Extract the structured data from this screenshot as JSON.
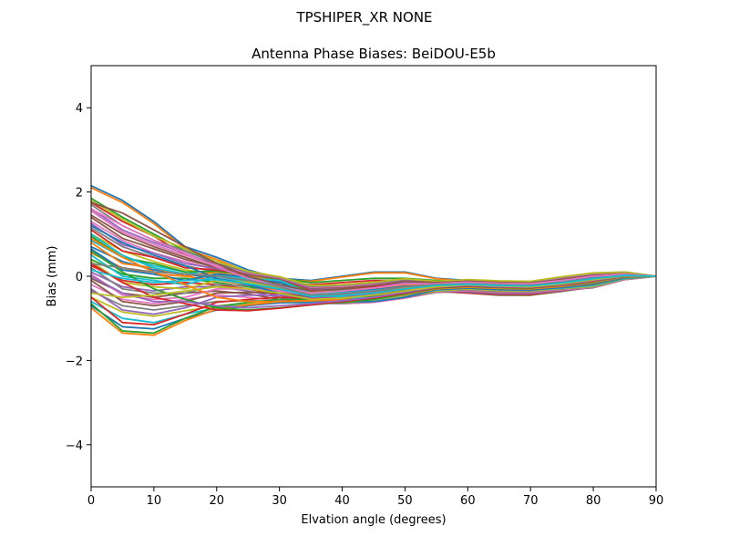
{
  "figure": {
    "suptitle": "TPSHIPER_XR     NONE"
  },
  "chart_data": {
    "type": "line",
    "title": "Antenna Phase Biases: BeiDOU-E5b",
    "xlabel": "Elvation angle (degrees)",
    "ylabel": "Bias (mm)",
    "xlim": [
      0,
      90
    ],
    "ylim": [
      -5,
      5
    ],
    "xticks": [
      0,
      10,
      20,
      30,
      40,
      50,
      60,
      70,
      80,
      90
    ],
    "yticks": [
      -4,
      -2,
      0,
      2,
      4
    ],
    "ytick_labels": [
      "−4",
      "−2",
      "0",
      "2",
      "4"
    ],
    "grid": false,
    "legend": "none",
    "palette": [
      "#1f77b4",
      "#ff7f0e",
      "#2ca02c",
      "#d62728",
      "#9467bd",
      "#8c564b",
      "#e377c2",
      "#7f7f7f",
      "#bcbd22",
      "#17becf"
    ],
    "x": [
      0,
      5,
      10,
      15,
      20,
      25,
      30,
      35,
      40,
      45,
      50,
      55,
      60,
      65,
      70,
      75,
      80,
      85,
      90
    ],
    "series": [
      {
        "values": [
          2.15,
          1.8,
          1.3,
          0.7,
          0.45,
          0.15,
          -0.05,
          -0.1,
          0.0,
          0.1,
          0.1,
          -0.05,
          -0.1,
          -0.15,
          -0.15,
          -0.1,
          0.05,
          0.1,
          0.0
        ]
      },
      {
        "values": [
          2.1,
          1.75,
          1.25,
          0.65,
          0.4,
          0.1,
          -0.08,
          -0.12,
          -0.02,
          0.08,
          0.08,
          -0.06,
          -0.12,
          -0.16,
          -0.16,
          -0.12,
          0.03,
          0.09,
          0.0
        ]
      },
      {
        "values": [
          1.85,
          1.4,
          1.0,
          0.6,
          0.35,
          0.1,
          -0.05,
          -0.15,
          -0.1,
          -0.05,
          -0.05,
          -0.1,
          -0.15,
          -0.2,
          -0.2,
          -0.15,
          0.0,
          0.05,
          0.0
        ]
      },
      {
        "values": [
          1.75,
          1.3,
          0.95,
          0.5,
          0.3,
          0.05,
          -0.1,
          -0.2,
          -0.15,
          -0.1,
          -0.1,
          -0.15,
          -0.18,
          -0.25,
          -0.25,
          -0.18,
          -0.02,
          0.04,
          0.0
        ]
      },
      {
        "values": [
          1.6,
          1.1,
          0.8,
          0.55,
          0.25,
          0.0,
          -0.12,
          -0.25,
          -0.2,
          -0.15,
          -0.12,
          -0.18,
          -0.2,
          -0.28,
          -0.3,
          -0.2,
          -0.05,
          0.03,
          0.0
        ]
      },
      {
        "values": [
          1.45,
          1.0,
          0.7,
          0.45,
          0.2,
          -0.02,
          -0.15,
          -0.3,
          -0.25,
          -0.2,
          -0.18,
          -0.2,
          -0.22,
          -0.3,
          -0.32,
          -0.22,
          -0.08,
          0.02,
          0.0
        ]
      },
      {
        "values": [
          1.3,
          0.85,
          0.55,
          0.35,
          0.15,
          -0.05,
          -0.2,
          -0.35,
          -0.3,
          -0.25,
          -0.22,
          -0.22,
          -0.25,
          -0.32,
          -0.35,
          -0.25,
          -0.1,
          0.01,
          0.0
        ]
      },
      {
        "values": [
          1.15,
          0.7,
          0.45,
          0.25,
          0.1,
          -0.1,
          -0.25,
          -0.4,
          -0.35,
          -0.3,
          -0.28,
          -0.25,
          -0.28,
          -0.35,
          -0.38,
          -0.28,
          -0.12,
          0.0,
          0.0
        ]
      },
      {
        "values": [
          1.0,
          0.6,
          0.35,
          0.15,
          0.05,
          -0.12,
          -0.28,
          -0.45,
          -0.4,
          -0.35,
          -0.3,
          -0.28,
          -0.3,
          -0.38,
          -0.4,
          -0.3,
          -0.15,
          -0.02,
          0.0
        ]
      },
      {
        "values": [
          0.85,
          0.45,
          0.25,
          0.1,
          0.0,
          -0.15,
          -0.3,
          -0.5,
          -0.45,
          -0.4,
          -0.35,
          -0.3,
          -0.32,
          -0.4,
          -0.42,
          -0.32,
          -0.18,
          -0.03,
          0.0
        ]
      },
      {
        "values": [
          0.7,
          0.35,
          0.15,
          0.05,
          -0.05,
          -0.18,
          -0.32,
          -0.52,
          -0.5,
          -0.45,
          -0.4,
          -0.32,
          -0.35,
          -0.42,
          -0.44,
          -0.34,
          -0.2,
          -0.04,
          0.0
        ]
      },
      {
        "values": [
          0.55,
          0.2,
          0.05,
          0.0,
          -0.1,
          -0.2,
          -0.35,
          -0.55,
          -0.55,
          -0.5,
          -0.42,
          -0.34,
          -0.38,
          -0.44,
          -0.45,
          -0.35,
          -0.22,
          -0.05,
          0.0
        ]
      },
      {
        "values": [
          0.4,
          0.05,
          -0.05,
          -0.05,
          -0.15,
          -0.25,
          -0.4,
          -0.58,
          -0.6,
          -0.55,
          -0.45,
          -0.35,
          -0.4,
          -0.45,
          -0.45,
          -0.36,
          -0.25,
          -0.06,
          0.0
        ]
      },
      {
        "values": [
          0.25,
          -0.1,
          -0.2,
          -0.15,
          -0.2,
          -0.3,
          -0.45,
          -0.6,
          -0.62,
          -0.58,
          -0.48,
          -0.36,
          -0.4,
          -0.44,
          -0.44,
          -0.35,
          -0.26,
          -0.07,
          0.0
        ]
      },
      {
        "values": [
          0.1,
          -0.25,
          -0.35,
          -0.25,
          -0.25,
          -0.35,
          -0.5,
          -0.62,
          -0.64,
          -0.6,
          -0.5,
          -0.37,
          -0.38,
          -0.42,
          -0.42,
          -0.34,
          -0.27,
          -0.08,
          0.0
        ]
      },
      {
        "values": [
          -0.05,
          -0.4,
          -0.5,
          -0.4,
          -0.35,
          -0.42,
          -0.55,
          -0.63,
          -0.65,
          -0.62,
          -0.52,
          -0.38,
          -0.36,
          -0.4,
          -0.4,
          -0.33,
          -0.27,
          -0.08,
          0.0
        ]
      },
      {
        "values": [
          -0.2,
          -0.55,
          -0.65,
          -0.55,
          -0.45,
          -0.5,
          -0.58,
          -0.64,
          -0.65,
          -0.62,
          -0.52,
          -0.37,
          -0.34,
          -0.38,
          -0.38,
          -0.32,
          -0.26,
          -0.08,
          0.0
        ]
      },
      {
        "values": [
          -0.35,
          -0.7,
          -0.8,
          -0.7,
          -0.6,
          -0.58,
          -0.6,
          -0.64,
          -0.64,
          -0.6,
          -0.5,
          -0.36,
          -0.32,
          -0.36,
          -0.36,
          -0.3,
          -0.25,
          -0.07,
          0.0
        ]
      },
      {
        "values": [
          -0.5,
          -0.85,
          -0.95,
          -0.82,
          -0.7,
          -0.65,
          -0.62,
          -0.63,
          -0.62,
          -0.58,
          -0.48,
          -0.35,
          -0.3,
          -0.34,
          -0.34,
          -0.29,
          -0.24,
          -0.06,
          0.0
        ]
      },
      {
        "values": [
          -0.6,
          -1.0,
          -1.1,
          -0.9,
          -0.75,
          -0.68,
          -0.63,
          -0.62,
          -0.6,
          -0.55,
          -0.45,
          -0.33,
          -0.28,
          -0.32,
          -0.32,
          -0.28,
          -0.22,
          -0.05,
          0.0
        ]
      },
      {
        "values": [
          -0.7,
          -1.2,
          -1.25,
          -1.0,
          -0.8,
          -0.7,
          -0.63,
          -0.6,
          -0.58,
          -0.52,
          -0.42,
          -0.31,
          -0.26,
          -0.3,
          -0.3,
          -0.27,
          -0.2,
          -0.04,
          0.0
        ]
      },
      {
        "values": [
          -0.75,
          -1.35,
          -1.4,
          -1.05,
          -0.78,
          -0.68,
          -0.6,
          -0.58,
          -0.55,
          -0.5,
          -0.4,
          -0.3,
          -0.25,
          -0.28,
          -0.29,
          -0.26,
          -0.18,
          -0.03,
          0.0
        ]
      },
      {
        "values": [
          -0.65,
          -1.3,
          -1.35,
          -1.0,
          -0.72,
          -0.62,
          -0.55,
          -0.55,
          -0.52,
          -0.48,
          -0.38,
          -0.28,
          -0.24,
          -0.27,
          -0.28,
          -0.25,
          -0.17,
          -0.02,
          0.0
        ]
      },
      {
        "values": [
          -0.5,
          -1.1,
          -1.15,
          -0.9,
          -0.62,
          -0.55,
          -0.5,
          -0.52,
          -0.5,
          -0.45,
          -0.36,
          -0.27,
          -0.23,
          -0.26,
          -0.27,
          -0.24,
          -0.15,
          -0.01,
          0.0
        ]
      },
      {
        "values": [
          -0.3,
          -0.8,
          -0.9,
          -0.75,
          -0.5,
          -0.45,
          -0.45,
          -0.5,
          -0.48,
          -0.42,
          -0.34,
          -0.26,
          -0.22,
          -0.25,
          -0.26,
          -0.22,
          -0.13,
          0.0,
          0.0
        ]
      },
      {
        "values": [
          -0.1,
          -0.6,
          -0.7,
          -0.6,
          -0.4,
          -0.38,
          -0.4,
          -0.48,
          -0.46,
          -0.4,
          -0.32,
          -0.25,
          -0.21,
          -0.24,
          -0.25,
          -0.2,
          -0.11,
          0.01,
          0.0
        ]
      },
      {
        "values": [
          0.05,
          -0.45,
          -0.55,
          -0.5,
          -0.3,
          -0.3,
          -0.35,
          -0.46,
          -0.44,
          -0.38,
          -0.3,
          -0.24,
          -0.2,
          -0.23,
          -0.24,
          -0.18,
          -0.09,
          0.02,
          0.0
        ]
      },
      {
        "values": [
          0.2,
          -0.3,
          -0.4,
          -0.4,
          -0.2,
          -0.22,
          -0.3,
          -0.44,
          -0.42,
          -0.36,
          -0.28,
          -0.23,
          -0.19,
          -0.22,
          -0.23,
          -0.16,
          -0.07,
          0.03,
          0.0
        ]
      },
      {
        "values": [
          0.35,
          -0.15,
          -0.25,
          -0.3,
          -0.1,
          -0.15,
          -0.25,
          -0.42,
          -0.4,
          -0.34,
          -0.26,
          -0.22,
          -0.18,
          -0.21,
          -0.22,
          -0.14,
          -0.05,
          0.04,
          0.0
        ]
      },
      {
        "values": [
          0.5,
          0.0,
          -0.1,
          -0.2,
          0.0,
          -0.08,
          -0.2,
          -0.4,
          -0.38,
          -0.32,
          -0.24,
          -0.21,
          -0.17,
          -0.2,
          -0.21,
          -0.12,
          -0.03,
          0.05,
          0.0
        ]
      },
      {
        "values": [
          0.65,
          0.15,
          0.05,
          -0.1,
          0.05,
          -0.02,
          -0.15,
          -0.38,
          -0.36,
          -0.3,
          -0.22,
          -0.2,
          -0.16,
          -0.19,
          -0.2,
          -0.1,
          -0.01,
          0.06,
          0.0
        ]
      },
      {
        "values": [
          0.8,
          0.3,
          0.2,
          0.0,
          0.1,
          0.02,
          -0.1,
          -0.36,
          -0.34,
          -0.28,
          -0.2,
          -0.19,
          -0.15,
          -0.18,
          -0.19,
          -0.08,
          0.01,
          0.07,
          0.0
        ]
      },
      {
        "values": [
          0.95,
          0.45,
          0.3,
          0.1,
          0.12,
          0.04,
          -0.08,
          -0.34,
          -0.32,
          -0.26,
          -0.18,
          -0.18,
          -0.14,
          -0.17,
          -0.18,
          -0.07,
          0.02,
          0.07,
          0.0
        ]
      },
      {
        "values": [
          1.1,
          0.6,
          0.45,
          0.2,
          0.15,
          0.05,
          -0.06,
          -0.32,
          -0.3,
          -0.24,
          -0.16,
          -0.17,
          -0.13,
          -0.16,
          -0.17,
          -0.06,
          0.03,
          0.08,
          0.0
        ]
      },
      {
        "values": [
          1.25,
          0.75,
          0.55,
          0.3,
          0.18,
          0.06,
          -0.05,
          -0.3,
          -0.28,
          -0.22,
          -0.14,
          -0.16,
          -0.12,
          -0.15,
          -0.16,
          -0.05,
          0.04,
          0.08,
          0.0
        ]
      },
      {
        "values": [
          1.4,
          0.9,
          0.65,
          0.4,
          0.2,
          0.07,
          -0.04,
          -0.28,
          -0.26,
          -0.2,
          -0.12,
          -0.15,
          -0.11,
          -0.14,
          -0.15,
          -0.04,
          0.05,
          0.09,
          0.0
        ]
      },
      {
        "values": [
          1.55,
          1.05,
          0.75,
          0.5,
          0.25,
          0.08,
          -0.03,
          -0.26,
          -0.24,
          -0.18,
          -0.1,
          -0.14,
          -0.1,
          -0.13,
          -0.14,
          -0.03,
          0.06,
          0.09,
          0.0
        ]
      },
      {
        "values": [
          1.7,
          1.2,
          0.85,
          0.6,
          0.3,
          0.1,
          -0.02,
          -0.24,
          -0.22,
          -0.16,
          -0.08,
          -0.13,
          -0.09,
          -0.12,
          -0.13,
          -0.02,
          0.07,
          0.1,
          0.0
        ]
      },
      {
        "values": [
          1.8,
          1.35,
          0.95,
          0.65,
          0.35,
          0.12,
          -0.01,
          -0.22,
          -0.2,
          -0.14,
          -0.06,
          -0.12,
          -0.08,
          -0.11,
          -0.12,
          -0.01,
          0.08,
          0.1,
          0.0
        ]
      },
      {
        "values": [
          1.0,
          0.5,
          0.2,
          0.05,
          0.0,
          -0.05,
          -0.1,
          -0.4,
          -0.5,
          -0.52,
          -0.45,
          -0.3,
          -0.25,
          -0.3,
          -0.3,
          -0.25,
          -0.15,
          -0.02,
          0.0
        ]
      },
      {
        "values": [
          1.2,
          0.8,
          0.5,
          0.25,
          -0.05,
          -0.2,
          -0.4,
          -0.55,
          -0.6,
          -0.6,
          -0.5,
          -0.32,
          -0.28,
          -0.32,
          -0.33,
          -0.26,
          -0.16,
          -0.03,
          0.0
        ]
      },
      {
        "values": [
          0.9,
          0.45,
          0.1,
          -0.2,
          -0.5,
          -0.6,
          -0.6,
          -0.58,
          -0.56,
          -0.54,
          -0.44,
          -0.3,
          -0.26,
          -0.29,
          -0.3,
          -0.24,
          -0.14,
          -0.02,
          0.0
        ]
      },
      {
        "values": [
          0.6,
          0.1,
          -0.3,
          -0.55,
          -0.75,
          -0.8,
          -0.75,
          -0.68,
          -0.62,
          -0.55,
          -0.42,
          -0.28,
          -0.24,
          -0.27,
          -0.28,
          -0.22,
          -0.12,
          -0.01,
          0.0
        ]
      },
      {
        "values": [
          0.3,
          -0.15,
          -0.5,
          -0.65,
          -0.8,
          -0.82,
          -0.76,
          -0.68,
          -0.6,
          -0.52,
          -0.4,
          -0.27,
          -0.23,
          -0.26,
          -0.27,
          -0.21,
          -0.11,
          0.0,
          0.0
        ]
      },
      {
        "values": [
          0.0,
          -0.4,
          -0.6,
          -0.6,
          -0.7,
          -0.75,
          -0.7,
          -0.65,
          -0.58,
          -0.5,
          -0.38,
          -0.26,
          -0.22,
          -0.25,
          -0.26,
          -0.2,
          -0.1,
          0.0,
          0.0
        ]
      },
      {
        "values": [
          1.75,
          1.5,
          1.1,
          0.7,
          0.3,
          0.0,
          -0.2,
          -0.35,
          -0.3,
          -0.22,
          -0.12,
          -0.15,
          -0.12,
          -0.15,
          -0.16,
          -0.08,
          0.02,
          0.06,
          0.0
        ]
      },
      {
        "values": [
          1.6,
          1.2,
          0.85,
          0.55,
          0.22,
          -0.05,
          -0.25,
          -0.4,
          -0.35,
          -0.28,
          -0.18,
          -0.18,
          -0.14,
          -0.17,
          -0.18,
          -0.1,
          0.0,
          0.05,
          0.0
        ]
      },
      {
        "values": [
          0.3,
          0.2,
          0.1,
          0.05,
          0.0,
          -0.1,
          -0.25,
          -0.45,
          -0.42,
          -0.35,
          -0.25,
          -0.2,
          -0.18,
          -0.2,
          -0.22,
          -0.14,
          -0.05,
          0.02,
          0.0
        ]
      },
      {
        "values": [
          -0.4,
          -0.5,
          -0.45,
          -0.35,
          -0.25,
          -0.3,
          -0.4,
          -0.55,
          -0.52,
          -0.45,
          -0.35,
          -0.25,
          -0.2,
          -0.23,
          -0.25,
          -0.18,
          -0.08,
          0.01,
          0.0
        ]
      },
      {
        "values": [
          0.15,
          -0.05,
          -0.15,
          -0.1,
          -0.08,
          -0.18,
          -0.3,
          -0.48,
          -0.46,
          -0.4,
          -0.3,
          -0.22,
          -0.19,
          -0.22,
          -0.23,
          -0.16,
          -0.06,
          0.02,
          0.0
        ]
      }
    ]
  }
}
